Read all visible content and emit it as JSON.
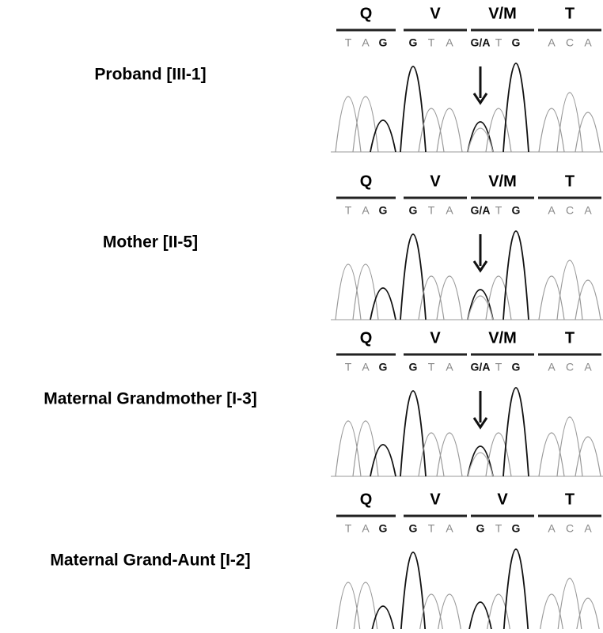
{
  "panels": [
    {
      "label": "Proband [III-1]",
      "codons": [
        {
          "aa": "Q",
          "bases": [
            "T",
            "A",
            "G"
          ]
        },
        {
          "aa": "V",
          "bases": [
            "G",
            "T",
            "A"
          ]
        },
        {
          "aa": "V/M",
          "bases": [
            "G/A",
            "T",
            "G"
          ]
        },
        {
          "aa": "T",
          "bases": [
            "A",
            "C",
            "A"
          ]
        }
      ]
    },
    {
      "label": "Mother [II-5]",
      "codons": [
        {
          "aa": "Q",
          "bases": [
            "T",
            "A",
            "G"
          ]
        },
        {
          "aa": "V",
          "bases": [
            "G",
            "T",
            "A"
          ]
        },
        {
          "aa": "V/M",
          "bases": [
            "G/A",
            "T",
            "G"
          ]
        },
        {
          "aa": "T",
          "bases": [
            "A",
            "C",
            "A"
          ]
        }
      ]
    },
    {
      "label": "Maternal Grandmother [I-3]",
      "codons": [
        {
          "aa": "Q",
          "bases": [
            "T",
            "A",
            "G"
          ]
        },
        {
          "aa": "V",
          "bases": [
            "G",
            "T",
            "A"
          ]
        },
        {
          "aa": "V/M",
          "bases": [
            "G/A",
            "T",
            "G"
          ]
        },
        {
          "aa": "T",
          "bases": [
            "A",
            "C",
            "A"
          ]
        }
      ]
    },
    {
      "label": "Maternal Grand-Aunt [I-2]",
      "codons": [
        {
          "aa": "Q",
          "bases": [
            "T",
            "A",
            "G"
          ]
        },
        {
          "aa": "V",
          "bases": [
            "G",
            "T",
            "A"
          ]
        },
        {
          "aa": "V",
          "bases": [
            "G",
            "T",
            "G"
          ]
        },
        {
          "aa": "T",
          "bases": [
            "A",
            "C",
            "A"
          ]
        }
      ]
    }
  ]
}
